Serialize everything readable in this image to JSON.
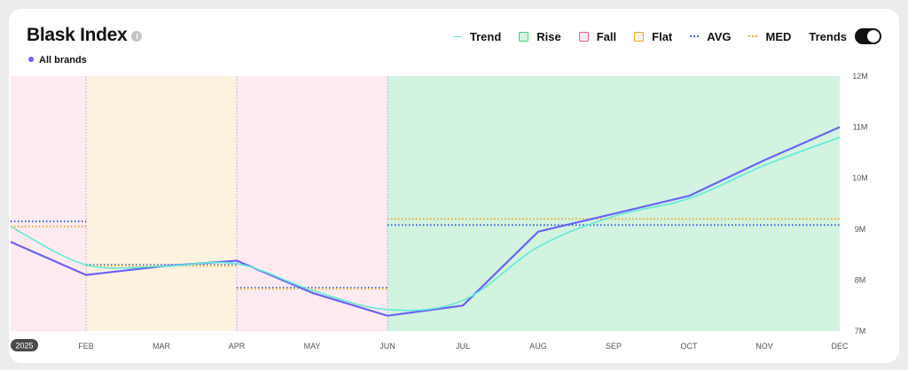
{
  "title": "Blask Index",
  "subtitle_label": "All brands",
  "legend": {
    "trend": "Trend",
    "rise": "Rise",
    "fall": "Fall",
    "flat": "Flat",
    "avg": "AVG",
    "med": "MED",
    "trends_toggle": "Trends"
  },
  "colors": {
    "index_line": "#6a63f5",
    "trend_line": "#62ead8",
    "rise": "#d2f3df",
    "fall": "#fdebf1",
    "flat": "#fdf2df",
    "avg": "#3b5fe0",
    "med": "#e9ac2e"
  },
  "chart_data": {
    "type": "line",
    "x_labels": [
      "2025",
      "FEB",
      "MAR",
      "APR",
      "MAY",
      "JUN",
      "JUL",
      "AUG",
      "SEP",
      "OCT",
      "NOV",
      "DEC"
    ],
    "y_ticks": [
      {
        "value": 12,
        "label": "12M"
      },
      {
        "value": 11,
        "label": "11M"
      },
      {
        "value": 10,
        "label": "10M"
      },
      {
        "value": 9,
        "label": "9M"
      },
      {
        "value": 8,
        "label": "8M"
      },
      {
        "value": 7,
        "label": "7M"
      }
    ],
    "ylim": [
      7,
      12
    ],
    "unit": "M",
    "series": [
      {
        "key": "index",
        "values": [
          8.75,
          8.1,
          8.27,
          8.38,
          7.75,
          7.3,
          7.5,
          8.95,
          9.3,
          9.65,
          10.35,
          11.0
        ]
      },
      {
        "key": "trend",
        "values": [
          9.05,
          8.3,
          8.27,
          8.32,
          7.8,
          7.42,
          7.6,
          8.65,
          9.25,
          9.6,
          10.25,
          10.8
        ]
      }
    ],
    "periods": [
      {
        "type": "fall",
        "start": 0,
        "end": 1,
        "avg": 9.15,
        "med": 9.05
      },
      {
        "type": "flat",
        "start": 1,
        "end": 3,
        "avg": 8.3,
        "med": 8.28
      },
      {
        "type": "fall",
        "start": 3,
        "end": 5,
        "avg": 7.85,
        "med": 7.83
      },
      {
        "type": "rise",
        "start": 5,
        "end": 11,
        "avg": 9.08,
        "med": 9.2
      }
    ]
  }
}
